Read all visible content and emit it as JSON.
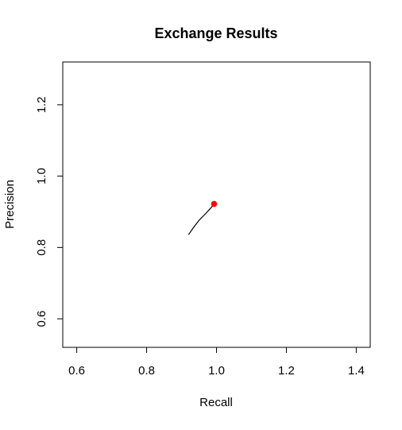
{
  "chart_data": {
    "type": "line",
    "title": "Exchange Results",
    "xlabel": "Recall",
    "ylabel": "Precision",
    "xlim": [
      0.56,
      1.44
    ],
    "ylim": [
      0.52,
      1.32
    ],
    "x_ticks": [
      0.6,
      0.8,
      1.0,
      1.2,
      1.4
    ],
    "x_tick_labels": [
      "0.6",
      "0.8",
      "1.0",
      "1.2",
      "1.4"
    ],
    "y_ticks": [
      0.6,
      0.8,
      1.0,
      1.2
    ],
    "y_tick_labels": [
      "0.6",
      "0.8",
      "1.0",
      "1.2"
    ],
    "grid": false,
    "series": [
      {
        "color": "#000000",
        "x": [
          0.92,
          0.935,
          0.95,
          0.97,
          0.985,
          0.993
        ],
        "y": [
          0.836,
          0.857,
          0.876,
          0.896,
          0.912,
          0.922
        ]
      }
    ],
    "highlight_point": {
      "x": 0.993,
      "y": 0.922,
      "color": "#ff0000"
    }
  }
}
